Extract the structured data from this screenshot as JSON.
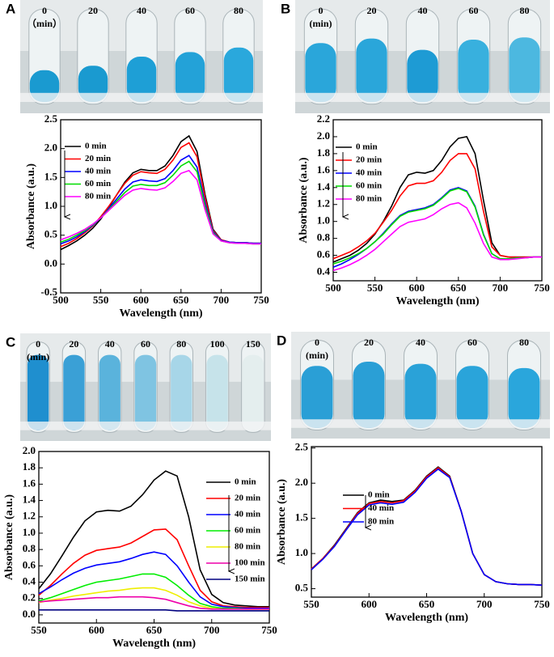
{
  "chart_data": [
    {
      "type": "line",
      "panel_label": "A",
      "photo_labels": [
        "0",
        "20",
        "40",
        "60",
        "80",
        "（min）"
      ],
      "x_label": "Wavelength (nm)",
      "y_label": "Absorbance (a.u.)",
      "x": [
        500,
        510,
        520,
        530,
        540,
        550,
        560,
        570,
        580,
        590,
        600,
        610,
        620,
        630,
        640,
        650,
        660,
        670,
        680,
        690,
        700,
        710,
        720,
        730,
        740,
        750
      ],
      "xlim": [
        500,
        750
      ],
      "xticks": [
        500,
        550,
        600,
        650,
        700,
        750
      ],
      "ylim": [
        -0.5,
        2.5
      ],
      "yticks": [
        -0.5,
        {
          "value": 0,
          "label": "0.0"
        },
        0.5,
        {
          "value": 1,
          "label": "1.0"
        },
        1.5,
        {
          "value": 2,
          "label": "2.0"
        },
        2.5
      ],
      "series": [
        {
          "name": "0 min",
          "color": "#000000",
          "values": [
            0.25,
            0.32,
            0.4,
            0.5,
            0.62,
            0.78,
            0.98,
            1.2,
            1.42,
            1.58,
            1.64,
            1.62,
            1.62,
            1.7,
            1.88,
            2.12,
            2.22,
            1.95,
            1.2,
            0.6,
            0.42,
            0.38,
            0.37,
            0.37,
            0.36,
            0.36
          ]
        },
        {
          "name": "20 min",
          "color": "#ff0000",
          "values": [
            0.3,
            0.36,
            0.44,
            0.54,
            0.66,
            0.82,
            1.0,
            1.2,
            1.4,
            1.54,
            1.6,
            1.58,
            1.57,
            1.64,
            1.8,
            2.02,
            2.1,
            1.86,
            1.15,
            0.58,
            0.42,
            0.38,
            0.37,
            0.37,
            0.36,
            0.36
          ]
        },
        {
          "name": "40 min",
          "color": "#0000ff",
          "values": [
            0.35,
            0.4,
            0.47,
            0.56,
            0.67,
            0.8,
            0.96,
            1.13,
            1.3,
            1.42,
            1.46,
            1.44,
            1.43,
            1.48,
            1.62,
            1.8,
            1.88,
            1.68,
            1.06,
            0.56,
            0.41,
            0.38,
            0.37,
            0.37,
            0.36,
            0.36
          ]
        },
        {
          "name": "60 min",
          "color": "#00dd00",
          "values": [
            0.38,
            0.43,
            0.5,
            0.58,
            0.68,
            0.8,
            0.94,
            1.09,
            1.24,
            1.35,
            1.38,
            1.36,
            1.36,
            1.41,
            1.54,
            1.7,
            1.78,
            1.6,
            1.0,
            0.54,
            0.4,
            0.37,
            0.36,
            0.36,
            0.35,
            0.35
          ]
        },
        {
          "name": "80 min",
          "color": "#ff00ff",
          "values": [
            0.42,
            0.47,
            0.53,
            0.6,
            0.69,
            0.8,
            0.93,
            1.06,
            1.19,
            1.28,
            1.31,
            1.29,
            1.28,
            1.32,
            1.43,
            1.57,
            1.62,
            1.46,
            0.94,
            0.52,
            0.4,
            0.37,
            0.36,
            0.36,
            0.35,
            0.35
          ]
        }
      ]
    },
    {
      "type": "line",
      "panel_label": "B",
      "photo_labels": [
        "0",
        "20",
        "40",
        "60",
        "80",
        "(min)"
      ],
      "x_label": "Wavelength (nm)",
      "y_label": "Absorbance (a.u.)",
      "x": [
        500,
        510,
        520,
        530,
        540,
        550,
        560,
        570,
        580,
        590,
        600,
        610,
        620,
        630,
        640,
        650,
        660,
        670,
        680,
        690,
        700,
        710,
        720,
        730,
        740,
        750
      ],
      "xlim": [
        500,
        750
      ],
      "xticks": [
        500,
        550,
        600,
        650,
        700,
        750
      ],
      "ylim": [
        0.3,
        2.2
      ],
      "yticks": [
        0.4,
        0.6,
        0.8,
        {
          "value": 1,
          "label": "1.0"
        },
        1.2,
        1.4,
        1.6,
        1.8,
        {
          "value": 2,
          "label": "2.0"
        },
        2.2
      ],
      "series": [
        {
          "name": "0 min",
          "color": "#000000",
          "values": [
            0.52,
            0.56,
            0.6,
            0.66,
            0.74,
            0.85,
            1.0,
            1.18,
            1.4,
            1.55,
            1.58,
            1.57,
            1.6,
            1.72,
            1.88,
            1.98,
            2.0,
            1.8,
            1.25,
            0.75,
            0.6,
            0.58,
            0.58,
            0.58,
            0.58,
            0.58
          ]
        },
        {
          "name": "20 min",
          "color": "#ff0000",
          "values": [
            0.56,
            0.6,
            0.64,
            0.7,
            0.77,
            0.86,
            0.99,
            1.13,
            1.3,
            1.42,
            1.45,
            1.45,
            1.48,
            1.58,
            1.72,
            1.8,
            1.8,
            1.62,
            1.12,
            0.7,
            0.6,
            0.58,
            0.58,
            0.58,
            0.58,
            0.58
          ]
        },
        {
          "name": "40 min",
          "color": "#0000ff",
          "values": [
            0.46,
            0.5,
            0.55,
            0.61,
            0.68,
            0.76,
            0.86,
            0.97,
            1.07,
            1.12,
            1.14,
            1.16,
            1.2,
            1.28,
            1.37,
            1.4,
            1.36,
            1.18,
            0.85,
            0.62,
            0.56,
            0.56,
            0.57,
            0.57,
            0.58,
            0.58
          ]
        },
        {
          "name": "60 min",
          "color": "#00dd00",
          "values": [
            0.5,
            0.53,
            0.57,
            0.62,
            0.68,
            0.76,
            0.85,
            0.96,
            1.06,
            1.11,
            1.13,
            1.15,
            1.19,
            1.27,
            1.36,
            1.39,
            1.35,
            1.17,
            0.84,
            0.62,
            0.56,
            0.56,
            0.57,
            0.57,
            0.58,
            0.58
          ]
        },
        {
          "name": "80 min",
          "color": "#ff00ff",
          "values": [
            0.42,
            0.45,
            0.49,
            0.54,
            0.6,
            0.67,
            0.76,
            0.85,
            0.94,
            0.99,
            1.01,
            1.03,
            1.08,
            1.15,
            1.2,
            1.22,
            1.16,
            0.98,
            0.74,
            0.58,
            0.55,
            0.55,
            0.56,
            0.57,
            0.58,
            0.58
          ]
        }
      ]
    },
    {
      "type": "line",
      "panel_label": "C",
      "photo_labels": [
        "0",
        "20",
        "40",
        "60",
        "80",
        "100",
        "150",
        "(min)"
      ],
      "x_label": "Wavelength (nm)",
      "y_label": "Absorbance (a.u.)",
      "x": [
        550,
        560,
        570,
        580,
        590,
        600,
        610,
        620,
        630,
        640,
        650,
        660,
        670,
        680,
        690,
        700,
        710,
        720,
        730,
        740,
        750
      ],
      "xlim": [
        550,
        750
      ],
      "xticks": [
        550,
        600,
        650,
        700,
        750
      ],
      "ylim": [
        -0.1,
        2.0
      ],
      "yticks": [
        {
          "value": 0,
          "label": "0.0"
        },
        0.2,
        0.4,
        0.6,
        0.8,
        {
          "value": 1,
          "label": "1.0"
        },
        1.2,
        1.4,
        1.6,
        1.8,
        {
          "value": 2,
          "label": "2.0"
        }
      ],
      "series": [
        {
          "name": "0 min",
          "color": "#000000",
          "values": [
            0.32,
            0.5,
            0.72,
            0.95,
            1.15,
            1.26,
            1.28,
            1.27,
            1.33,
            1.47,
            1.65,
            1.76,
            1.7,
            1.2,
            0.55,
            0.25,
            0.15,
            0.12,
            0.11,
            0.1,
            0.1
          ]
        },
        {
          "name": "20 min",
          "color": "#ff0000",
          "values": [
            0.24,
            0.36,
            0.5,
            0.63,
            0.73,
            0.79,
            0.81,
            0.83,
            0.88,
            0.96,
            1.04,
            1.05,
            0.92,
            0.6,
            0.3,
            0.16,
            0.11,
            0.1,
            0.09,
            0.09,
            0.09
          ]
        },
        {
          "name": "40 min",
          "color": "#0000ff",
          "values": [
            0.26,
            0.34,
            0.43,
            0.51,
            0.57,
            0.61,
            0.63,
            0.65,
            0.69,
            0.74,
            0.77,
            0.74,
            0.6,
            0.4,
            0.22,
            0.13,
            0.1,
            0.09,
            0.08,
            0.08,
            0.08
          ]
        },
        {
          "name": "60 min",
          "color": "#00ee00",
          "values": [
            0.17,
            0.21,
            0.26,
            0.31,
            0.36,
            0.4,
            0.42,
            0.44,
            0.47,
            0.5,
            0.5,
            0.46,
            0.36,
            0.24,
            0.14,
            0.1,
            0.08,
            0.08,
            0.07,
            0.07,
            0.07
          ]
        },
        {
          "name": "80 min",
          "color": "#eeee00",
          "values": [
            0.15,
            0.18,
            0.2,
            0.23,
            0.25,
            0.27,
            0.29,
            0.3,
            0.32,
            0.33,
            0.33,
            0.3,
            0.24,
            0.16,
            0.11,
            0.08,
            0.07,
            0.07,
            0.07,
            0.07,
            0.07
          ]
        },
        {
          "name": "100 min",
          "color": "#ee00aa",
          "values": [
            0.16,
            0.17,
            0.18,
            0.19,
            0.2,
            0.21,
            0.21,
            0.22,
            0.22,
            0.22,
            0.21,
            0.19,
            0.15,
            0.11,
            0.08,
            0.07,
            0.07,
            0.07,
            0.07,
            0.07,
            0.07
          ]
        },
        {
          "name": "150 min",
          "color": "#000080",
          "values": [
            0.06,
            0.06,
            0.06,
            0.06,
            0.06,
            0.06,
            0.06,
            0.06,
            0.06,
            0.06,
            0.06,
            0.06,
            0.05,
            0.05,
            0.05,
            0.05,
            0.05,
            0.05,
            0.05,
            0.05,
            0.05
          ]
        }
      ]
    },
    {
      "type": "line",
      "panel_label": "D",
      "photo_labels": [
        "0",
        "20",
        "40",
        "60",
        "80",
        "(min)"
      ],
      "x_label": "Wavelength (nm)",
      "y_label": "Absorbance (a.u.)",
      "x": [
        550,
        560,
        570,
        580,
        590,
        600,
        610,
        620,
        630,
        640,
        650,
        660,
        670,
        680,
        690,
        700,
        710,
        720,
        730,
        740,
        750
      ],
      "xlim": [
        550,
        750
      ],
      "xticks": [
        550,
        600,
        650,
        700,
        750
      ],
      "ylim": [
        0.38,
        2.52
      ],
      "yticks": [
        0.5,
        {
          "value": 1,
          "label": "1.0"
        },
        1.5,
        {
          "value": 2,
          "label": "2.0"
        },
        2.5
      ],
      "series": [
        {
          "name": "0 min",
          "color": "#000000",
          "values": [
            0.78,
            0.93,
            1.12,
            1.35,
            1.58,
            1.72,
            1.76,
            1.74,
            1.76,
            1.9,
            2.1,
            2.23,
            2.1,
            1.6,
            1.0,
            0.7,
            0.6,
            0.57,
            0.56,
            0.56,
            0.55
          ]
        },
        {
          "name": "40 min",
          "color": "#ff0000",
          "values": [
            0.78,
            0.93,
            1.11,
            1.34,
            1.57,
            1.71,
            1.74,
            1.72,
            1.75,
            1.89,
            2.09,
            2.22,
            2.09,
            1.6,
            1.0,
            0.7,
            0.6,
            0.57,
            0.56,
            0.56,
            0.55
          ]
        },
        {
          "name": "80 min",
          "color": "#0000ff",
          "values": [
            0.77,
            0.92,
            1.1,
            1.33,
            1.55,
            1.69,
            1.72,
            1.7,
            1.73,
            1.87,
            2.07,
            2.2,
            2.08,
            1.6,
            1.0,
            0.7,
            0.6,
            0.57,
            0.56,
            0.56,
            0.55
          ]
        }
      ]
    }
  ]
}
